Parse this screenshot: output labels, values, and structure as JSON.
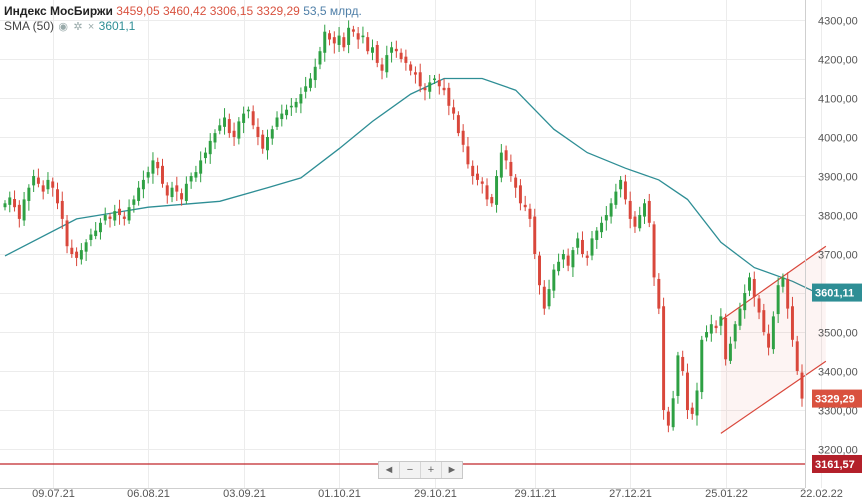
{
  "legend": {
    "instrument": "Индекс МосБиржи",
    "open": "3459,05",
    "high": "3460,42",
    "low": "3306,15",
    "close": "3329,29",
    "volume": "53,5 млрд.",
    "sma_label": "SMA (50)",
    "sma_value": "3601,1"
  },
  "navigator": {
    "left": "◄",
    "minus": "−",
    "plus": "+",
    "right": "►"
  },
  "price_tags": {
    "sma": "3601,11",
    "last": "3329,29",
    "support": "3161,57"
  },
  "chart_data": {
    "type": "candlestick",
    "ylim": [
      3180,
      4330
    ],
    "y_ticks": [
      {
        "value": 3200,
        "label": "3200,00"
      },
      {
        "value": 3300,
        "label": "3300,00"
      },
      {
        "value": 3400,
        "label": "3400,00"
      },
      {
        "value": 3500,
        "label": "3500,00"
      },
      {
        "value": 3600,
        "label": "3600,00"
      },
      {
        "value": 3700,
        "label": "3700,00"
      },
      {
        "value": 3800,
        "label": "3800,00"
      },
      {
        "value": 3900,
        "label": "3900,00"
      },
      {
        "value": 4000,
        "label": "4000,00"
      },
      {
        "value": 4100,
        "label": "4100,00"
      },
      {
        "value": 4200,
        "label": "4200,00"
      },
      {
        "value": 4300,
        "label": "4300,00"
      }
    ],
    "x_ticks": [
      {
        "index": 10,
        "label": "09.07.21"
      },
      {
        "index": 30,
        "label": "06.08.21"
      },
      {
        "index": 50,
        "label": "03.09.21"
      },
      {
        "index": 70,
        "label": "01.10.21"
      },
      {
        "index": 90,
        "label": "29.10.21"
      },
      {
        "index": 111,
        "label": "29.11.21"
      },
      {
        "index": 131,
        "label": "27.12.21"
      },
      {
        "index": 151,
        "label": "25.01.22"
      },
      {
        "index": 171,
        "label": "22.02.22"
      }
    ],
    "colors": {
      "up": "#2ea043",
      "down": "#d9473b",
      "sma": "#2e8e95",
      "channel": "#d9473b",
      "support": "#c0262b",
      "grid": "#ececec",
      "last_tag": "#d9523f",
      "sma_tag": "#2e8e95",
      "support_tag": "#b3202a"
    },
    "closes": [
      3830,
      3845,
      3820,
      3790,
      3840,
      3870,
      3900,
      3880,
      3860,
      3890,
      3870,
      3830,
      3790,
      3720,
      3700,
      3690,
      3710,
      3730,
      3750,
      3760,
      3780,
      3800,
      3790,
      3810,
      3800,
      3790,
      3820,
      3840,
      3870,
      3890,
      3910,
      3940,
      3920,
      3880,
      3850,
      3870,
      3860,
      3840,
      3880,
      3900,
      3910,
      3940,
      3960,
      3990,
      4010,
      4030,
      4050,
      4010,
      4000,
      4040,
      4060,
      4070,
      4030,
      4000,
      3970,
      4000,
      4020,
      4050,
      4060,
      4070,
      4080,
      4090,
      4110,
      4130,
      4150,
      4180,
      4220,
      4270,
      4250,
      4240,
      4260,
      4230,
      4280,
      4270,
      4250,
      4260,
      4220,
      4230,
      4190,
      4170,
      4210,
      4230,
      4220,
      4200,
      4190,
      4170,
      4160,
      4130,
      4120,
      4140,
      4150,
      4130,
      4120,
      4080,
      4060,
      4010,
      3980,
      3930,
      3900,
      3890,
      3880,
      3840,
      3830,
      3900,
      3960,
      3940,
      3900,
      3870,
      3830,
      3820,
      3790,
      3700,
      3620,
      3560,
      3610,
      3660,
      3680,
      3700,
      3670,
      3710,
      3740,
      3700,
      3690,
      3740,
      3760,
      3780,
      3800,
      3830,
      3860,
      3890,
      3840,
      3790,
      3770,
      3800,
      3830,
      3780,
      3640,
      3560,
      3300,
      3260,
      3330,
      3440,
      3400,
      3300,
      3290,
      3350,
      3480,
      3500,
      3520,
      3510,
      3540,
      3430,
      3470,
      3520,
      3560,
      3600,
      3640,
      3590,
      3550,
      3500,
      3460,
      3540,
      3620,
      3640,
      3560,
      3480,
      3400,
      3329.29
    ],
    "sma": [
      {
        "index": 0,
        "value": 3695
      },
      {
        "index": 15,
        "value": 3790
      },
      {
        "index": 30,
        "value": 3820
      },
      {
        "index": 45,
        "value": 3835
      },
      {
        "index": 55,
        "value": 3870
      },
      {
        "index": 62,
        "value": 3895
      },
      {
        "index": 70,
        "value": 3970
      },
      {
        "index": 77,
        "value": 4040
      },
      {
        "index": 85,
        "value": 4110
      },
      {
        "index": 92,
        "value": 4150
      },
      {
        "index": 100,
        "value": 4150
      },
      {
        "index": 107,
        "value": 4120
      },
      {
        "index": 115,
        "value": 4020
      },
      {
        "index": 122,
        "value": 3960
      },
      {
        "index": 130,
        "value": 3920
      },
      {
        "index": 137,
        "value": 3890
      },
      {
        "index": 143,
        "value": 3840
      },
      {
        "index": 150,
        "value": 3730
      },
      {
        "index": 157,
        "value": 3665
      },
      {
        "index": 165,
        "value": 3630
      },
      {
        "index": 170,
        "value": 3601.11
      }
    ],
    "channel": [
      {
        "from": {
          "index": 150,
          "value": 3530
        },
        "to": {
          "index": 172,
          "value": 3720
        }
      },
      {
        "from": {
          "index": 150,
          "value": 3240
        },
        "to": {
          "index": 172,
          "value": 3425
        }
      }
    ],
    "support_level": 3161.57,
    "last_price": 3329.29,
    "sma_last": 3601.11
  }
}
